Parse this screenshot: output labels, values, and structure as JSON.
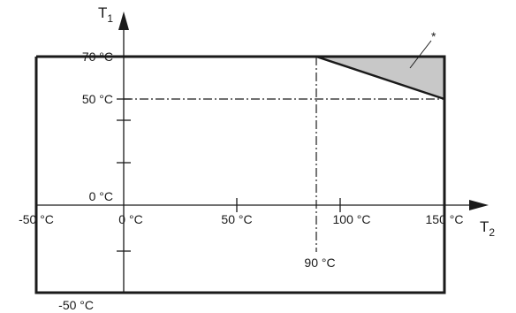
{
  "axes": {
    "y_title": "T",
    "y_sub": "1",
    "x_title": "T",
    "x_sub": "2"
  },
  "y_labels": {
    "t70": "70 °C",
    "t50": "50 °C",
    "t0": "0 °C",
    "tneg50": "-50 °C"
  },
  "x_labels": {
    "tneg50": "-50 °C",
    "t0": "0 °C",
    "t50": "50 °C",
    "t100": "100 °C",
    "t150": "150 °C",
    "t90": "90 °C"
  },
  "annotation": {
    "marker": "*"
  },
  "colors": {
    "line": "#1a1a1a",
    "shaded_region": "#c8c8c8"
  }
}
